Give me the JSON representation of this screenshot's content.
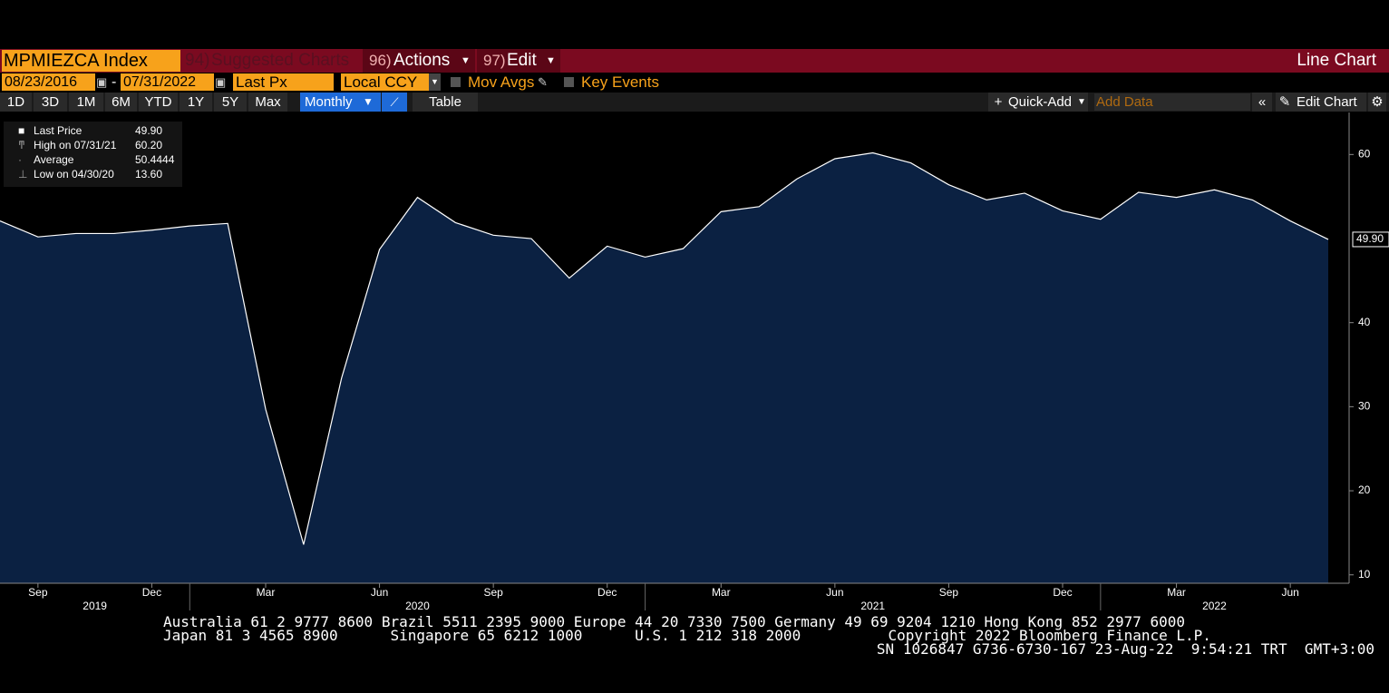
{
  "toolbar": {
    "ticker": "MPMIEZCA Index",
    "suggested_num": "94)",
    "suggested": "Suggested Charts",
    "actions_num": "96)",
    "actions": "Actions",
    "edit_num": "97)",
    "edit": "Edit",
    "chart_kind": "Line Chart"
  },
  "controls": {
    "start_date": "08/23/2016",
    "date_separator": "-",
    "end_date": "07/31/2022",
    "field": "Last Px",
    "currency": "Local CCY",
    "mov_avgs": "Mov Avgs",
    "key_events": "Key Events"
  },
  "periods": [
    "1D",
    "3D",
    "1M",
    "6M",
    "YTD",
    "1Y",
    "5Y",
    "Max"
  ],
  "frequency": "Monthly",
  "table": "Table",
  "quick_add": "Quick-Add",
  "add_data": "Add Data",
  "edit_chart": "Edit Chart",
  "legend": [
    {
      "label": "Last Price",
      "value": "49.90"
    },
    {
      "label": "High on 07/31/21",
      "value": "60.20"
    },
    {
      "label": "Average",
      "value": "50.4444"
    },
    {
      "label": "Low on 04/30/20",
      "value": "13.60"
    }
  ],
  "chart_data": {
    "type": "area",
    "color": "#0b2142",
    "line_color": "#ffffff",
    "categories": [
      null,
      "Sep",
      null,
      null,
      "Dec",
      null,
      null,
      "Mar",
      null,
      null,
      "Jun",
      null,
      null,
      "Sep",
      null,
      null,
      "Dec",
      null,
      null,
      "Mar",
      null,
      null,
      "Jun",
      null,
      null,
      "Sep",
      null,
      null,
      "Dec",
      null,
      null,
      "Mar",
      null,
      null,
      "Jun",
      null
    ],
    "years": [
      "2019",
      "2020",
      "2021",
      "2022"
    ],
    "values": [
      52.1,
      50.2,
      50.6,
      50.6,
      51.0,
      51.5,
      51.8,
      29.7,
      13.6,
      33.4,
      48.7,
      54.9,
      51.9,
      50.4,
      50.0,
      45.3,
      49.1,
      47.8,
      48.8,
      53.2,
      53.8,
      57.1,
      59.5,
      60.2,
      59.0,
      56.4,
      54.6,
      55.4,
      53.3,
      52.3,
      55.5,
      54.9,
      55.8,
      54.6,
      52.1,
      49.9
    ],
    "last_label": "49.90",
    "ylim": [
      9,
      65
    ],
    "yticks": [
      10,
      20,
      30,
      40,
      60
    ]
  },
  "footer": [
    "Australia 61 2 9777 8600 Brazil 5511 2395 9000 Europe 44 20 7330 7500 Germany 49 69 9204 1210 Hong Kong 852 2977 6000",
    "Japan 81 3 4565 8900      Singapore 65 6212 1000      U.S. 1 212 318 2000          Copyright 2022 Bloomberg Finance L.P.",
    "SN 1026847 G736-6730-167 23-Aug-22  9:54:21 TRT  GMT+3:00"
  ]
}
